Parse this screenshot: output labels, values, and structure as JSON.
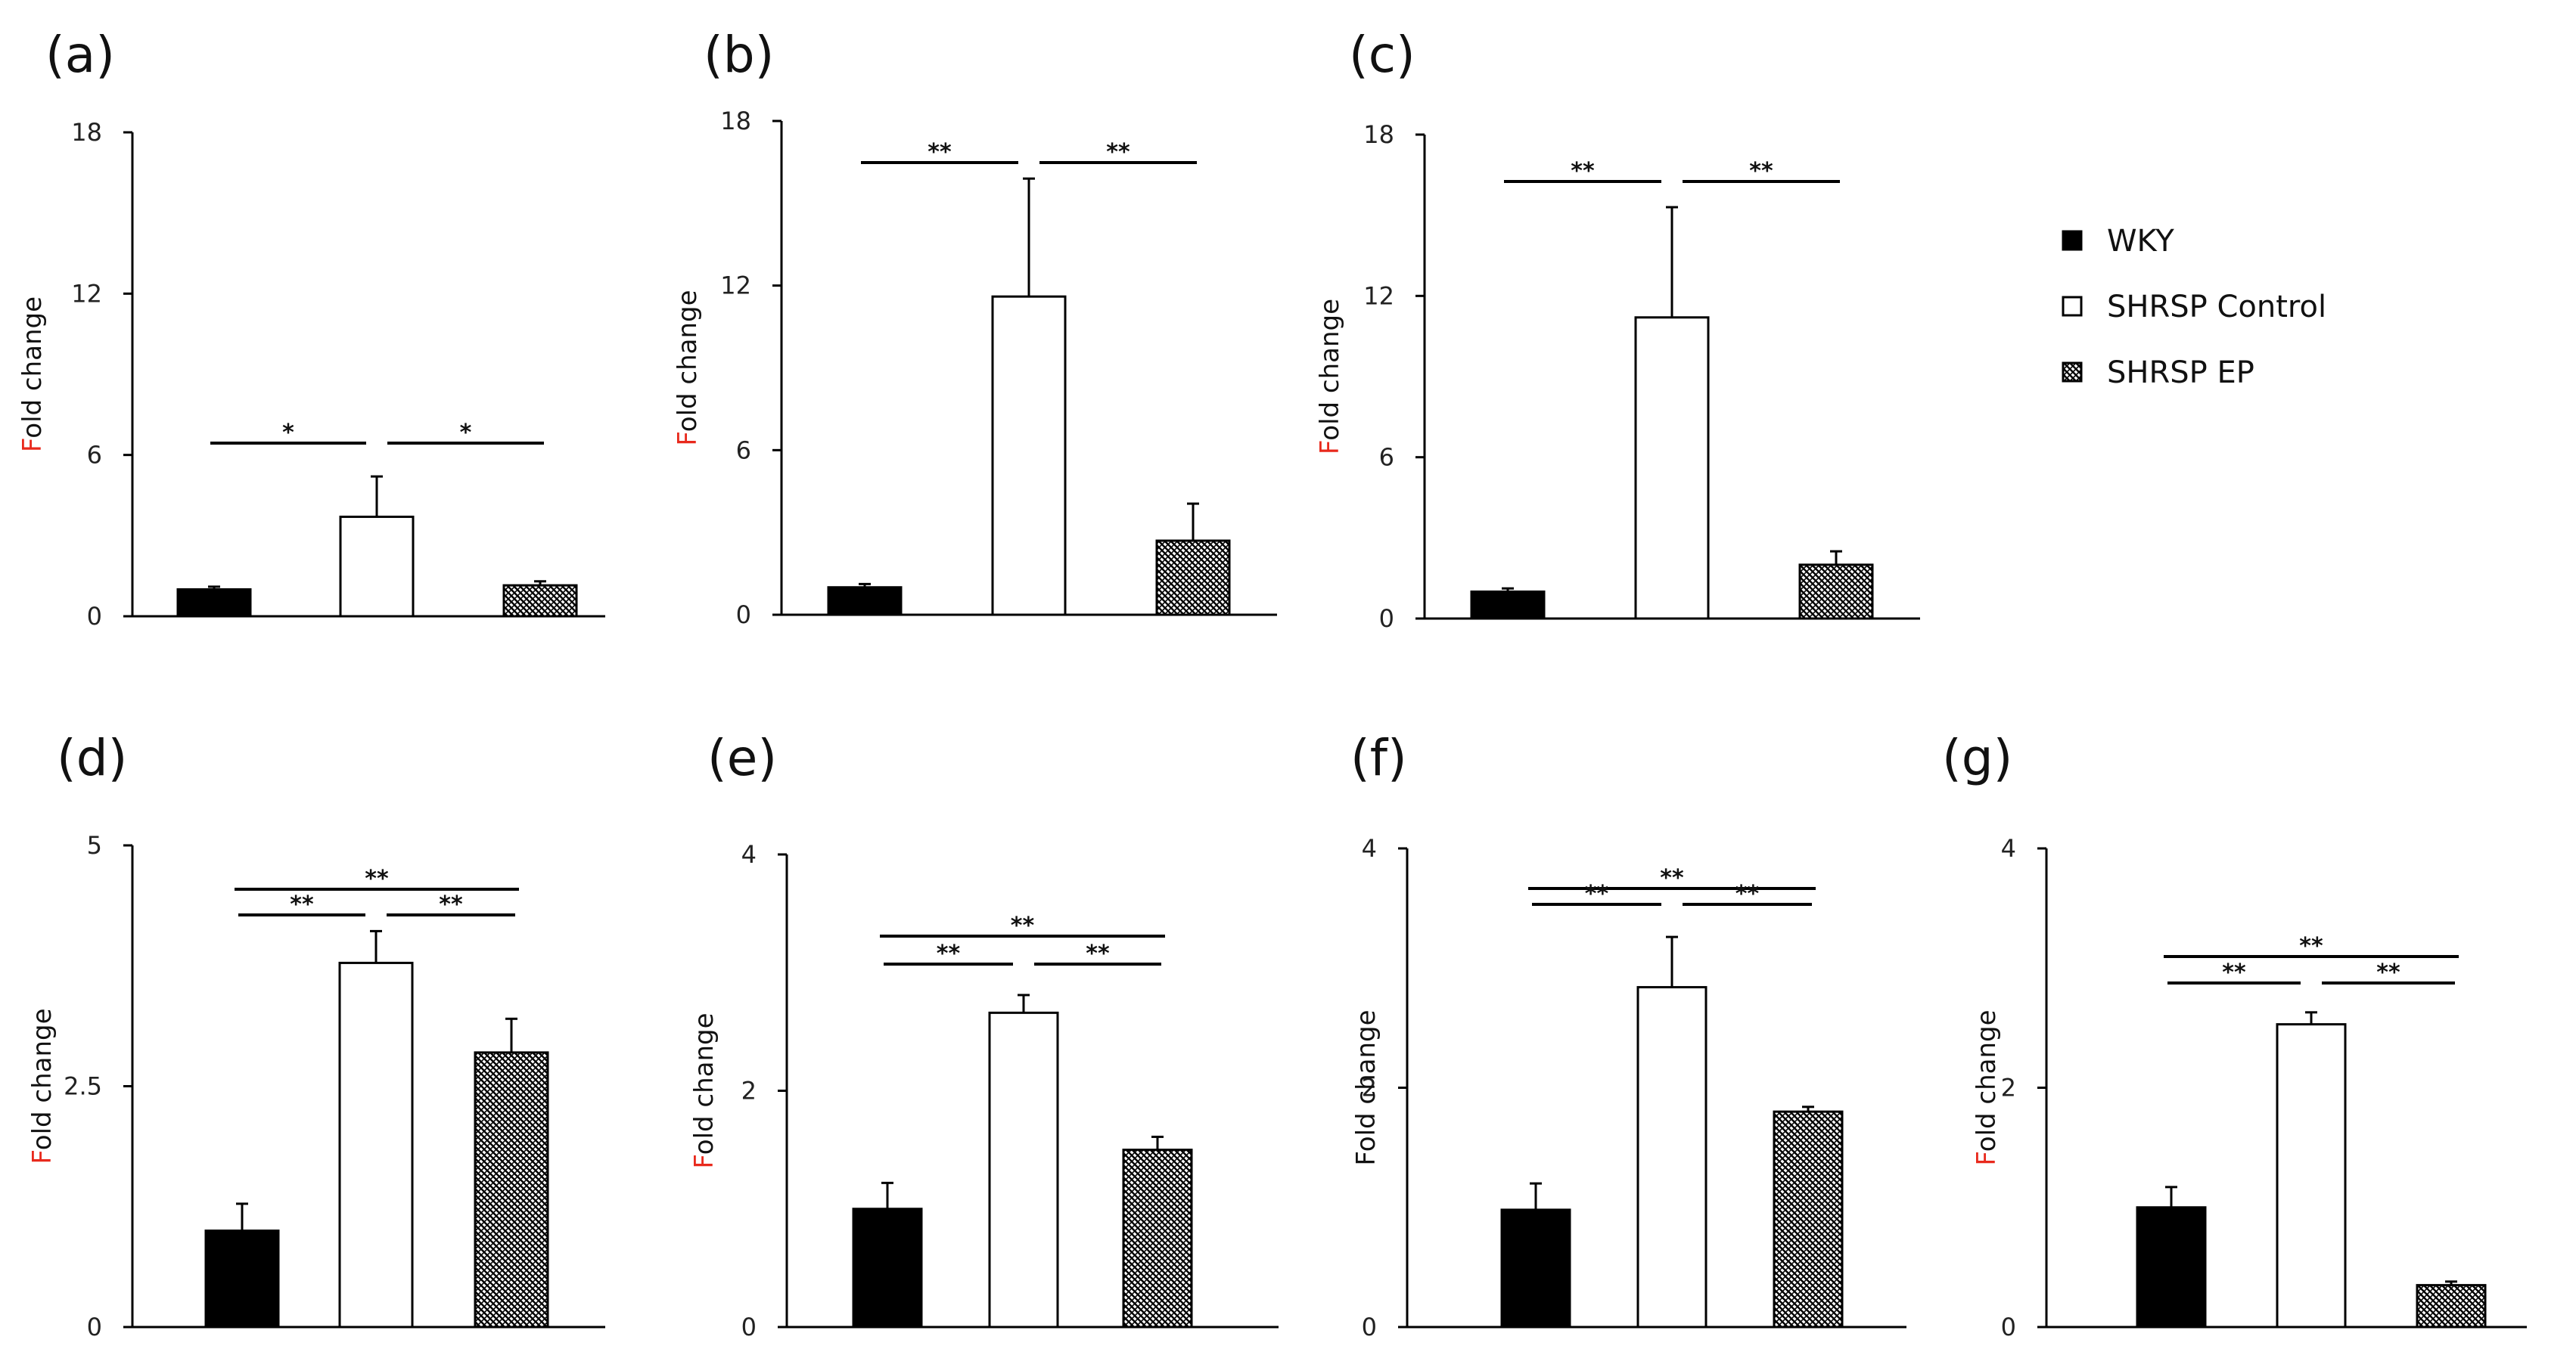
{
  "legend": {
    "items": [
      {
        "label": "WKY",
        "fill": "black"
      },
      {
        "label": "SHRSP Control",
        "fill": "white"
      },
      {
        "label": "SHRSP EP",
        "fill": "hatch"
      }
    ]
  },
  "colors": {
    "bar_outline": "#000000",
    "wky_fill": "#000000",
    "control_fill": "#ffffff",
    "ep_hatch_dark": "#000000",
    "ep_hatch_light": "#ffffff",
    "axis_title_first_letter": "#e8291c"
  },
  "chart_data": [
    {
      "type": "bar",
      "panel": "(a)",
      "categories": [
        "WKY",
        "SHRSP Control",
        "SHRSP EP"
      ],
      "values": [
        1.0,
        3.7,
        1.15
      ],
      "errors": [
        0.1,
        1.5,
        0.15
      ],
      "ylim": [
        0,
        18
      ],
      "yticks": [
        "0",
        "6",
        "12",
        "18"
      ],
      "ylabel_first": "F",
      "ylabel_rest": "old change",
      "ylabel_first_red": true,
      "significance": [
        {
          "from": 0,
          "to": 1,
          "label": "*"
        },
        {
          "from": 1,
          "to": 2,
          "label": "*"
        }
      ]
    },
    {
      "type": "bar",
      "panel": "(b)",
      "categories": [
        "WKY",
        "SHRSP Control",
        "SHRSP EP"
      ],
      "values": [
        1.0,
        11.6,
        2.7
      ],
      "errors": [
        0.12,
        4.3,
        1.35
      ],
      "ylim": [
        0,
        18
      ],
      "yticks": [
        "0",
        "6",
        "12",
        "18"
      ],
      "ylabel_first": "F",
      "ylabel_rest": "old change",
      "ylabel_first_red": true,
      "significance": [
        {
          "from": 0,
          "to": 1,
          "label": "**"
        },
        {
          "from": 1,
          "to": 2,
          "label": "**"
        }
      ]
    },
    {
      "type": "bar",
      "panel": "(c)",
      "categories": [
        "WKY",
        "SHRSP Control",
        "SHRSP EP"
      ],
      "values": [
        1.0,
        11.2,
        2.0
      ],
      "errors": [
        0.12,
        4.1,
        0.5
      ],
      "ylim": [
        0,
        18
      ],
      "yticks": [
        "0",
        "6",
        "12",
        "18"
      ],
      "ylabel_first": "F",
      "ylabel_rest": "old change",
      "ylabel_first_red": true,
      "significance": [
        {
          "from": 0,
          "to": 1,
          "label": "**"
        },
        {
          "from": 1,
          "to": 2,
          "label": "**"
        }
      ]
    },
    {
      "type": "bar",
      "panel": "(d)",
      "categories": [
        "WKY",
        "SHRSP Control",
        "SHRSP EP"
      ],
      "values": [
        1.0,
        3.78,
        2.85
      ],
      "errors": [
        0.28,
        0.33,
        0.35
      ],
      "ylim": [
        0,
        5
      ],
      "yticks": [
        "0",
        "2.5",
        "5"
      ],
      "ylabel_first": "F",
      "ylabel_rest": "old change",
      "ylabel_first_red": true,
      "significance": [
        {
          "from": 0,
          "to": 2,
          "label": "**"
        },
        {
          "from": 0,
          "to": 1,
          "label": "**"
        },
        {
          "from": 1,
          "to": 2,
          "label": "**"
        }
      ]
    },
    {
      "type": "bar",
      "panel": "(e)",
      "categories": [
        "WKY",
        "SHRSP Control",
        "SHRSP EP"
      ],
      "values": [
        1.0,
        2.66,
        1.5
      ],
      "errors": [
        0.22,
        0.15,
        0.11
      ],
      "ylim": [
        0,
        4
      ],
      "yticks": [
        "0",
        "2",
        "4"
      ],
      "ylabel_first": "F",
      "ylabel_rest": "old change",
      "ylabel_first_red": true,
      "significance": [
        {
          "from": 0,
          "to": 2,
          "label": "**"
        },
        {
          "from": 0,
          "to": 1,
          "label": "**"
        },
        {
          "from": 1,
          "to": 2,
          "label": "**"
        }
      ]
    },
    {
      "type": "bar",
      "panel": "(f)",
      "categories": [
        "WKY",
        "SHRSP Control",
        "SHRSP EP"
      ],
      "values": [
        0.98,
        2.84,
        1.8
      ],
      "errors": [
        0.22,
        0.42,
        0.04
      ],
      "ylim": [
        0,
        4
      ],
      "yticks": [
        "0",
        "2",
        "4"
      ],
      "ylabel_first": "F",
      "ylabel_rest": "old change",
      "ylabel_first_red": false,
      "significance": [
        {
          "from": 0,
          "to": 2,
          "label": "**"
        },
        {
          "from": 0,
          "to": 1,
          "label": "**"
        },
        {
          "from": 1,
          "to": 2,
          "label": "**"
        }
      ]
    },
    {
      "type": "bar",
      "panel": "(g)",
      "categories": [
        "WKY",
        "SHRSP Control",
        "SHRSP EP"
      ],
      "values": [
        1.0,
        2.53,
        0.35
      ],
      "errors": [
        0.17,
        0.1,
        0.03
      ],
      "ylim": [
        0,
        4
      ],
      "yticks": [
        "0",
        "2",
        "4"
      ],
      "ylabel_first": "F",
      "ylabel_rest": "old change",
      "ylabel_first_red": true,
      "significance": [
        {
          "from": 0,
          "to": 2,
          "label": "**"
        },
        {
          "from": 0,
          "to": 1,
          "label": "**"
        },
        {
          "from": 1,
          "to": 2,
          "label": "**"
        }
      ]
    }
  ]
}
